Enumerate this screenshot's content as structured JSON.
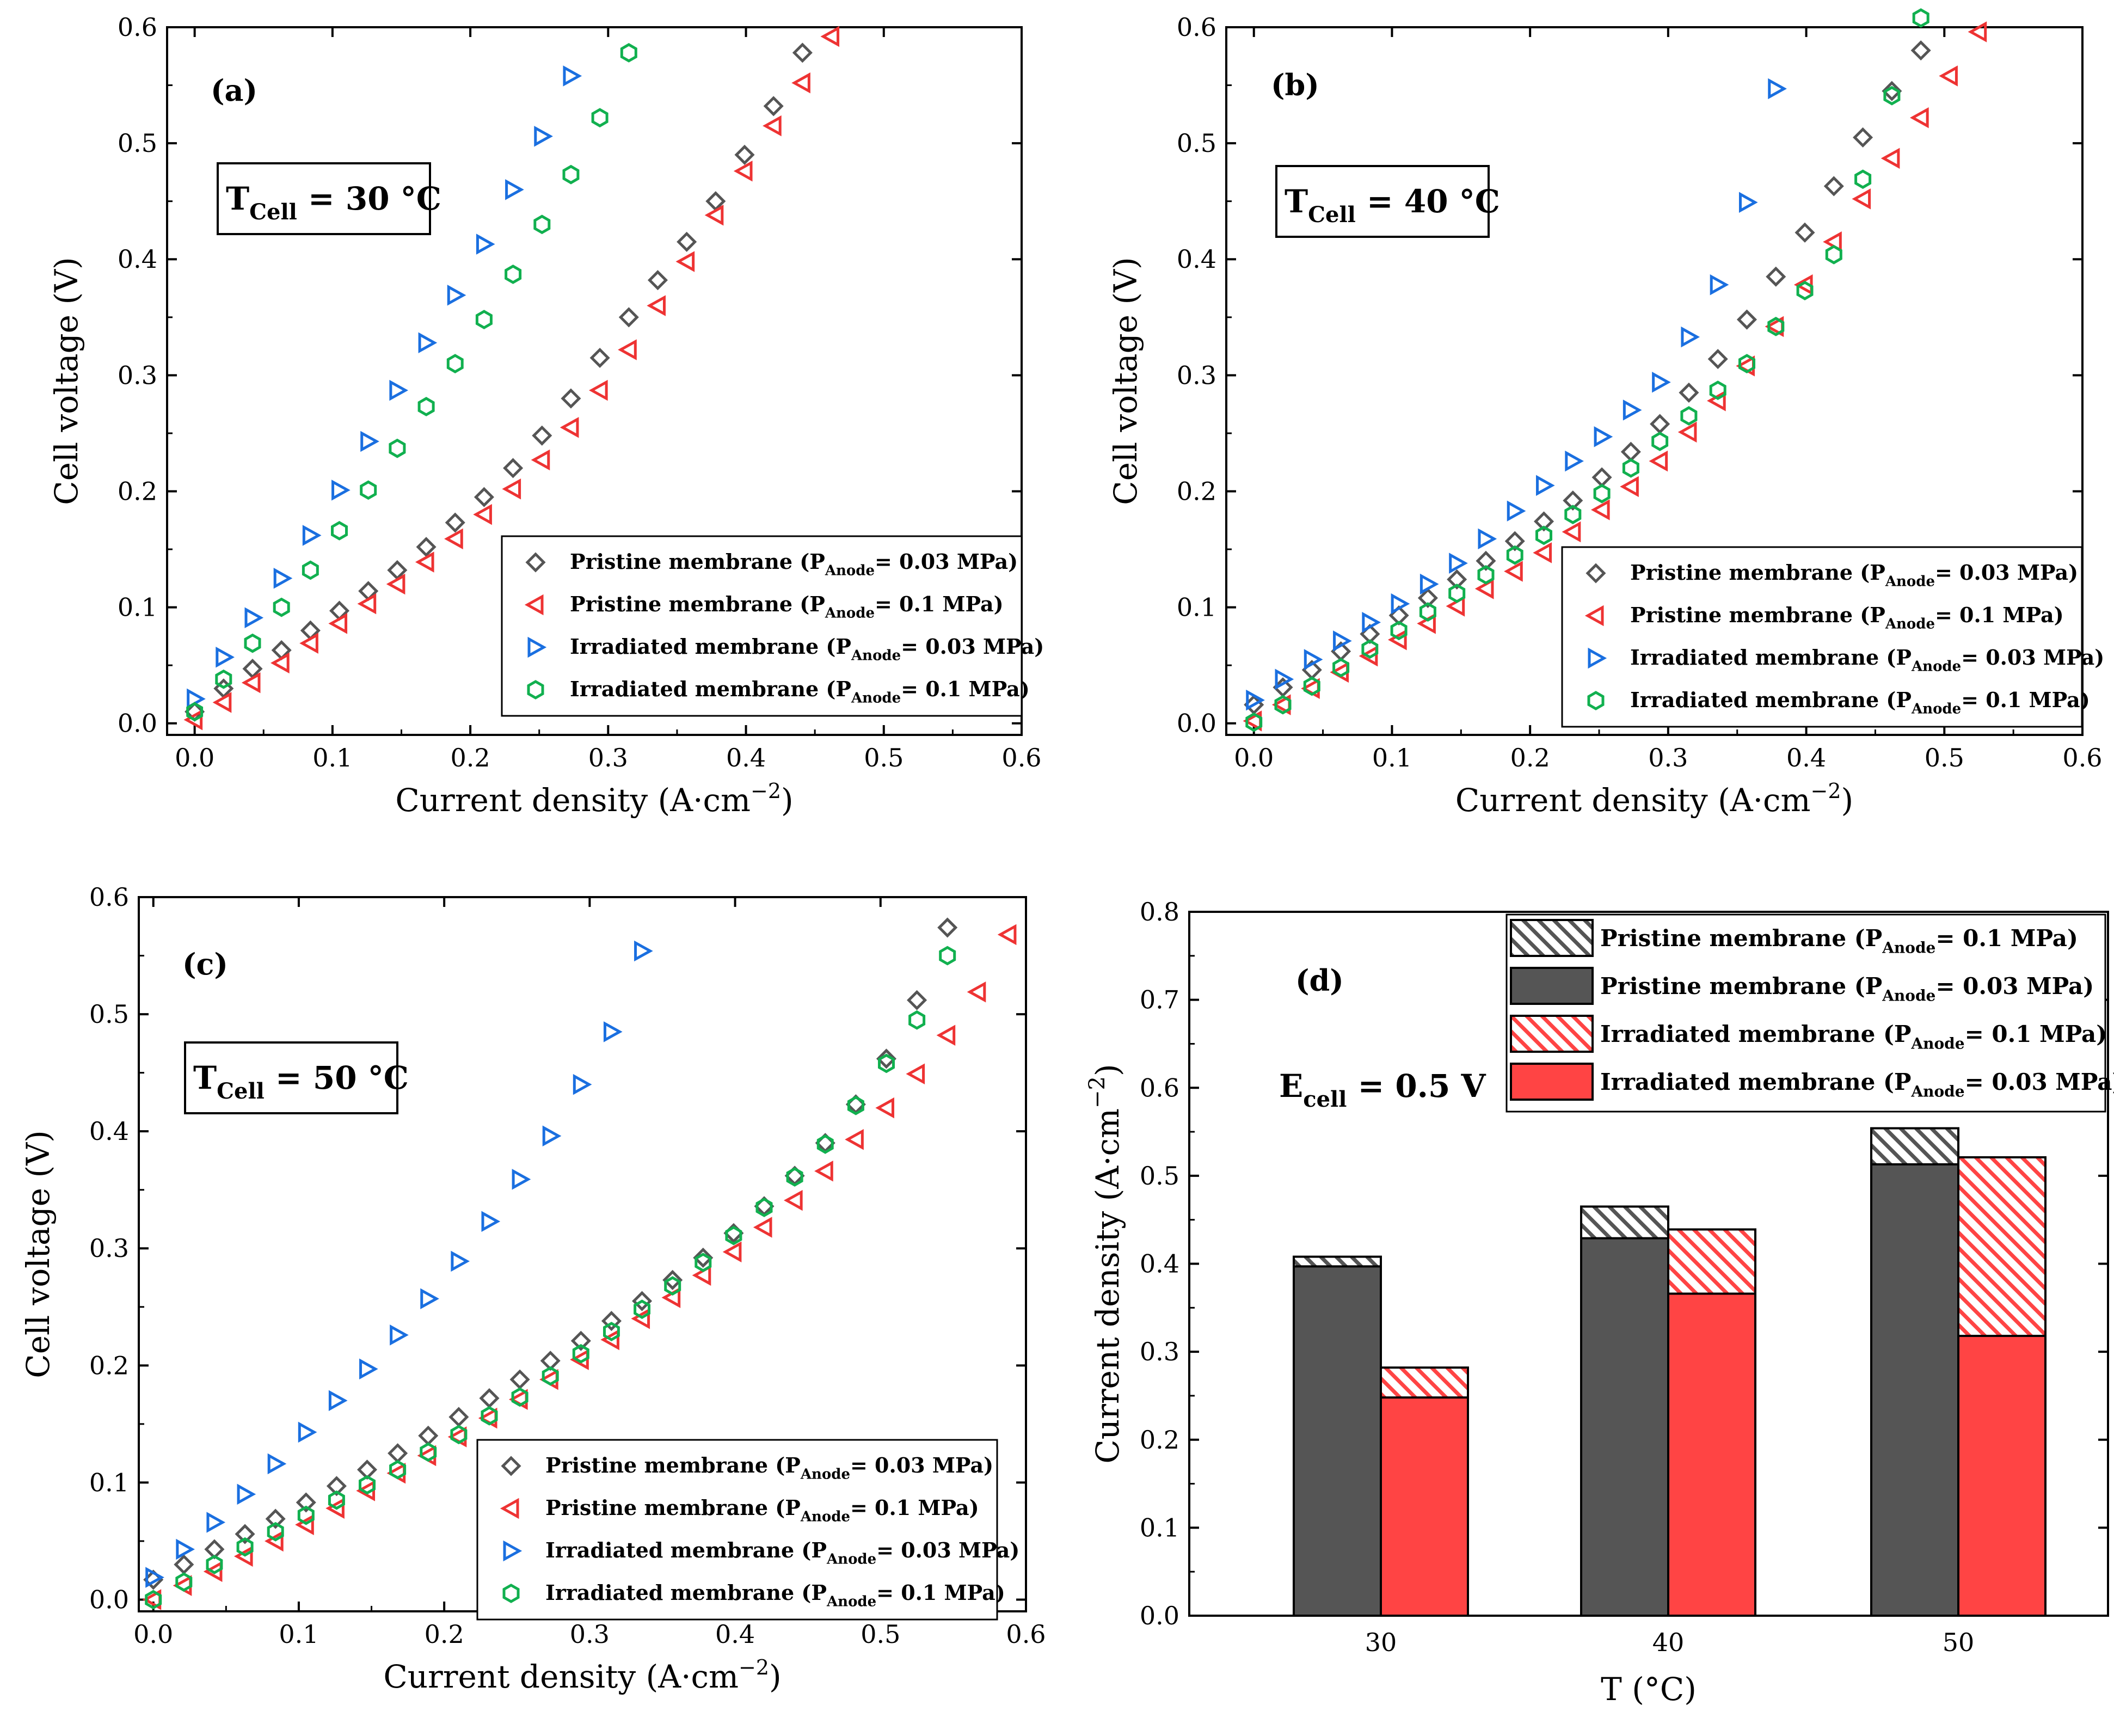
{
  "chart_data": [
    {
      "id": "a",
      "type": "scatter",
      "panel_label": "(a)",
      "condition": {
        "main": "T",
        "sub": "Cell",
        "rest": " = 30 °C"
      },
      "xlabel": "Current density (A·cm",
      "xlabel_sup": "−2",
      "xlabel_close": ")",
      "ylabel": "Cell voltage (V)",
      "xlim": [
        -0.02,
        0.6
      ],
      "ylim": [
        -0.01,
        0.6
      ],
      "xticks": [
        "0.0",
        "0.1",
        "0.2",
        "0.3",
        "0.4",
        "0.5",
        "0.6"
      ],
      "yticks": [
        "0.0",
        "0.1",
        "0.2",
        "0.3",
        "0.4",
        "0.5",
        "0.6"
      ],
      "legend_position": "bottom-right",
      "series": [
        {
          "name": "Pristine membrane (P",
          "sub": "Anode",
          "rest": "= 0.03 MPa)",
          "marker": "diamond",
          "color": "#555555",
          "x": [
            0.0,
            0.021,
            0.042,
            0.063,
            0.084,
            0.105,
            0.126,
            0.147,
            0.168,
            0.189,
            0.21,
            0.231,
            0.252,
            0.273,
            0.294,
            0.315,
            0.336,
            0.357,
            0.378,
            0.399,
            0.42,
            0.441
          ],
          "y": [
            0.01,
            0.03,
            0.047,
            0.063,
            0.08,
            0.097,
            0.114,
            0.132,
            0.152,
            0.173,
            0.195,
            0.22,
            0.248,
            0.28,
            0.315,
            0.35,
            0.382,
            0.415,
            0.45,
            0.49,
            0.532,
            0.578
          ]
        },
        {
          "name": "Pristine membrane (P",
          "sub": "Anode",
          "rest": "= 0.1 MPa)",
          "marker": "tri-left",
          "color": "#ee3333",
          "x": [
            0.0,
            0.021,
            0.042,
            0.063,
            0.084,
            0.105,
            0.126,
            0.147,
            0.168,
            0.189,
            0.21,
            0.231,
            0.252,
            0.273,
            0.294,
            0.315,
            0.336,
            0.357,
            0.378,
            0.399,
            0.42,
            0.441,
            0.462
          ],
          "y": [
            0.003,
            0.018,
            0.035,
            0.052,
            0.069,
            0.086,
            0.103,
            0.12,
            0.139,
            0.159,
            0.18,
            0.202,
            0.227,
            0.255,
            0.287,
            0.322,
            0.36,
            0.398,
            0.438,
            0.476,
            0.515,
            0.552,
            0.592
          ]
        },
        {
          "name": "Irradiated membrane (P",
          "sub": "Anode",
          "rest": "= 0.03 MPa)",
          "marker": "tri-right",
          "color": "#1a6fe0",
          "x": [
            0.0,
            0.021,
            0.042,
            0.063,
            0.084,
            0.105,
            0.126,
            0.147,
            0.168,
            0.189,
            0.21,
            0.231,
            0.252,
            0.273
          ],
          "y": [
            0.021,
            0.057,
            0.091,
            0.125,
            0.162,
            0.201,
            0.243,
            0.287,
            0.328,
            0.369,
            0.413,
            0.46,
            0.506,
            0.558
          ]
        },
        {
          "name": "Irradiated membrane (P",
          "sub": "Anode",
          "rest": "= 0.1 MPa)",
          "marker": "hexagon",
          "color": "#11b04f",
          "x": [
            0.0,
            0.021,
            0.042,
            0.063,
            0.084,
            0.105,
            0.126,
            0.147,
            0.168,
            0.189,
            0.21,
            0.231,
            0.252,
            0.273,
            0.294,
            0.315
          ],
          "y": [
            0.01,
            0.038,
            0.069,
            0.1,
            0.132,
            0.166,
            0.201,
            0.237,
            0.273,
            0.31,
            0.348,
            0.387,
            0.43,
            0.473,
            0.522,
            0.578
          ]
        }
      ]
    },
    {
      "id": "b",
      "type": "scatter",
      "panel_label": "(b)",
      "condition": {
        "main": "T",
        "sub": "Cell",
        "rest": " = 40 °C"
      },
      "xlabel": "Current density (A·cm",
      "xlabel_sup": "−2",
      "xlabel_close": ")",
      "ylabel": "Cell voltage (V)",
      "xlim": [
        -0.02,
        0.6
      ],
      "ylim": [
        -0.01,
        0.6
      ],
      "xticks": [
        "0.0",
        "0.1",
        "0.2",
        "0.3",
        "0.4",
        "0.5",
        "0.6"
      ],
      "yticks": [
        "0.0",
        "0.1",
        "0.2",
        "0.3",
        "0.4",
        "0.5",
        "0.6"
      ],
      "legend_position": "bottom-right",
      "series": [
        {
          "name": "Pristine membrane (P",
          "sub": "Anode",
          "rest": "= 0.03 MPa)",
          "marker": "diamond",
          "color": "#555555",
          "x": [
            0.0,
            0.021,
            0.042,
            0.063,
            0.084,
            0.105,
            0.126,
            0.147,
            0.168,
            0.189,
            0.21,
            0.231,
            0.252,
            0.273,
            0.294,
            0.315,
            0.336,
            0.357,
            0.378,
            0.399,
            0.42,
            0.441,
            0.462,
            0.483
          ],
          "y": [
            0.016,
            0.031,
            0.046,
            0.062,
            0.077,
            0.093,
            0.108,
            0.124,
            0.14,
            0.157,
            0.174,
            0.192,
            0.212,
            0.234,
            0.258,
            0.285,
            0.314,
            0.348,
            0.385,
            0.423,
            0.463,
            0.505,
            0.545,
            0.58
          ]
        },
        {
          "name": "Pristine membrane (P",
          "sub": "Anode",
          "rest": "= 0.1 MPa)",
          "marker": "tri-left",
          "color": "#ee3333",
          "x": [
            0.0,
            0.021,
            0.042,
            0.063,
            0.084,
            0.105,
            0.126,
            0.147,
            0.168,
            0.189,
            0.21,
            0.231,
            0.252,
            0.273,
            0.294,
            0.315,
            0.336,
            0.357,
            0.378,
            0.399,
            0.42,
            0.441,
            0.462,
            0.483,
            0.504,
            0.525
          ],
          "y": [
            0.002,
            0.016,
            0.03,
            0.044,
            0.058,
            0.072,
            0.086,
            0.101,
            0.116,
            0.131,
            0.147,
            0.165,
            0.184,
            0.204,
            0.226,
            0.251,
            0.278,
            0.308,
            0.342,
            0.378,
            0.415,
            0.452,
            0.487,
            0.522,
            0.558,
            0.596
          ]
        },
        {
          "name": "Irradiated membrane (P",
          "sub": "Anode",
          "rest": "= 0.03 MPa)",
          "marker": "tri-right",
          "color": "#1a6fe0",
          "x": [
            0.0,
            0.021,
            0.042,
            0.063,
            0.084,
            0.105,
            0.126,
            0.147,
            0.168,
            0.189,
            0.21,
            0.231,
            0.252,
            0.273,
            0.294,
            0.315,
            0.336,
            0.357,
            0.378
          ],
          "y": [
            0.02,
            0.038,
            0.055,
            0.071,
            0.087,
            0.103,
            0.12,
            0.138,
            0.159,
            0.183,
            0.205,
            0.226,
            0.247,
            0.27,
            0.294,
            0.333,
            0.378,
            0.449,
            0.547
          ]
        },
        {
          "name": "Irradiated membrane (P",
          "sub": "Anode",
          "rest": "= 0.1 MPa)",
          "marker": "hexagon",
          "color": "#11b04f",
          "x": [
            0.0,
            0.021,
            0.042,
            0.063,
            0.084,
            0.105,
            0.126,
            0.147,
            0.168,
            0.189,
            0.21,
            0.231,
            0.252,
            0.273,
            0.294,
            0.315,
            0.336,
            0.357,
            0.378,
            0.399,
            0.42,
            0.441,
            0.462,
            0.483
          ],
          "y": [
            0.001,
            0.016,
            0.032,
            0.048,
            0.064,
            0.08,
            0.096,
            0.112,
            0.128,
            0.145,
            0.162,
            0.18,
            0.198,
            0.22,
            0.243,
            0.265,
            0.287,
            0.31,
            0.342,
            0.373,
            0.404,
            0.469,
            0.541,
            0.608
          ]
        }
      ]
    },
    {
      "id": "c",
      "type": "scatter",
      "panel_label": "(c)",
      "condition": {
        "main": "T",
        "sub": "Cell",
        "rest": " = 50 °C"
      },
      "xlabel": "Current density (A·cm",
      "xlabel_sup": "−2",
      "xlabel_close": ")",
      "ylabel": "Cell voltage (V)",
      "xlim": [
        -0.01,
        0.6
      ],
      "ylim": [
        -0.01,
        0.6
      ],
      "xticks": [
        "0.0",
        "0.1",
        "0.2",
        "0.3",
        "0.4",
        "0.5",
        "0.6"
      ],
      "yticks": [
        "0.0",
        "0.1",
        "0.2",
        "0.3",
        "0.4",
        "0.5",
        "0.6"
      ],
      "legend_position": "bottom-right",
      "series": [
        {
          "name": "Pristine membrane (P",
          "sub": "Anode",
          "rest": "= 0.03 MPa)",
          "marker": "diamond",
          "color": "#555555",
          "x": [
            0.0,
            0.021,
            0.042,
            0.063,
            0.084,
            0.105,
            0.126,
            0.147,
            0.168,
            0.189,
            0.21,
            0.231,
            0.252,
            0.273,
            0.294,
            0.315,
            0.336,
            0.357,
            0.378,
            0.399,
            0.42,
            0.441,
            0.462,
            0.483,
            0.504,
            0.525,
            0.546
          ],
          "y": [
            0.017,
            0.03,
            0.043,
            0.056,
            0.069,
            0.083,
            0.097,
            0.111,
            0.125,
            0.14,
            0.156,
            0.172,
            0.188,
            0.204,
            0.221,
            0.238,
            0.255,
            0.273,
            0.292,
            0.313,
            0.336,
            0.362,
            0.39,
            0.423,
            0.462,
            0.512,
            0.574
          ]
        },
        {
          "name": "Pristine membrane (P",
          "sub": "Anode",
          "rest": "= 0.1 MPa)",
          "marker": "tri-left",
          "color": "#ee3333",
          "x": [
            0.0,
            0.021,
            0.042,
            0.063,
            0.084,
            0.105,
            0.126,
            0.147,
            0.168,
            0.189,
            0.21,
            0.231,
            0.252,
            0.273,
            0.294,
            0.315,
            0.336,
            0.357,
            0.378,
            0.399,
            0.42,
            0.441,
            0.462,
            0.483,
            0.504,
            0.525,
            0.546,
            0.567,
            0.588
          ],
          "y": [
            0.0,
            0.012,
            0.024,
            0.037,
            0.05,
            0.064,
            0.078,
            0.093,
            0.108,
            0.123,
            0.139,
            0.155,
            0.171,
            0.188,
            0.205,
            0.222,
            0.24,
            0.258,
            0.277,
            0.297,
            0.318,
            0.341,
            0.366,
            0.393,
            0.42,
            0.449,
            0.482,
            0.519,
            0.568
          ]
        },
        {
          "name": "Irradiated membrane (P",
          "sub": "Anode",
          "rest": "= 0.03 MPa)",
          "marker": "tri-right",
          "color": "#1a6fe0",
          "x": [
            0.0,
            0.021,
            0.042,
            0.063,
            0.084,
            0.105,
            0.126,
            0.147,
            0.168,
            0.189,
            0.21,
            0.231,
            0.252,
            0.273,
            0.294,
            0.315,
            0.336
          ],
          "y": [
            0.019,
            0.043,
            0.066,
            0.09,
            0.116,
            0.143,
            0.17,
            0.197,
            0.226,
            0.257,
            0.289,
            0.323,
            0.359,
            0.396,
            0.44,
            0.485,
            0.554
          ]
        },
        {
          "name": "Irradiated membrane (P",
          "sub": "Anode",
          "rest": "= 0.1 MPa)",
          "marker": "hexagon",
          "color": "#11b04f",
          "x": [
            0.0,
            0.021,
            0.042,
            0.063,
            0.084,
            0.105,
            0.126,
            0.147,
            0.168,
            0.189,
            0.21,
            0.231,
            0.252,
            0.273,
            0.294,
            0.315,
            0.336,
            0.357,
            0.378,
            0.399,
            0.42,
            0.441,
            0.462,
            0.483,
            0.504,
            0.525,
            0.546
          ],
          "y": [
            0.0,
            0.015,
            0.03,
            0.045,
            0.058,
            0.072,
            0.085,
            0.098,
            0.111,
            0.126,
            0.141,
            0.157,
            0.173,
            0.191,
            0.21,
            0.229,
            0.248,
            0.268,
            0.288,
            0.311,
            0.335,
            0.361,
            0.389,
            0.422,
            0.458,
            0.495,
            0.55
          ]
        }
      ]
    },
    {
      "id": "d",
      "type": "bar",
      "panel_label": "(d)",
      "condition": {
        "main": "E",
        "sub": "cell",
        "rest": " = 0.5 V"
      },
      "xlabel": "T (°C)",
      "ylabel": "Current density (A·cm",
      "ylabel_sup": "−2",
      "ylabel_close": ")",
      "categories": [
        "30",
        "40",
        "50"
      ],
      "ylim": [
        0,
        0.8
      ],
      "yticks": [
        "0.0",
        "0.1",
        "0.2",
        "0.3",
        "0.4",
        "0.5",
        "0.6",
        "0.7",
        "0.8"
      ],
      "legend_position": "top-right",
      "legend": [
        {
          "name": "Pristine membrane (P",
          "sub": "Anode",
          "rest": "= 0.1 MPa)",
          "fill": "#555555",
          "hatched": true
        },
        {
          "name": "Pristine membrane  (P",
          "sub": "Anode",
          "rest": "= 0.03 MPa)",
          "fill": "#555555",
          "hatched": false
        },
        {
          "name": "Irradiated membrane  (P",
          "sub": "Anode",
          "rest": "= 0.1 MPa)",
          "fill": "#ff4444",
          "hatched": true
        },
        {
          "name": "Irradiated membrane  (P",
          "sub": "Anode",
          "rest": "= 0.03 MPa)",
          "fill": "#ff4444",
          "hatched": false
        }
      ],
      "series": [
        {
          "name": "Pristine membrane (PAnode= 0.03 MPa)",
          "color": "#555555",
          "values": [
            0.397,
            0.429,
            0.513
          ]
        },
        {
          "name": "Pristine membrane (PAnode= 0.1 MPa)",
          "color": "#555555",
          "hatched": true,
          "values": [
            0.408,
            0.465,
            0.554
          ]
        },
        {
          "name": "Irradiated membrane (PAnode= 0.03 MPa)",
          "color": "#ff4444",
          "values": [
            0.248,
            0.366,
            0.318
          ]
        },
        {
          "name": "Irradiated membrane (PAnode= 0.1 MPa)",
          "color": "#ff4444",
          "hatched": true,
          "values": [
            0.282,
            0.439,
            0.521
          ]
        }
      ]
    }
  ]
}
